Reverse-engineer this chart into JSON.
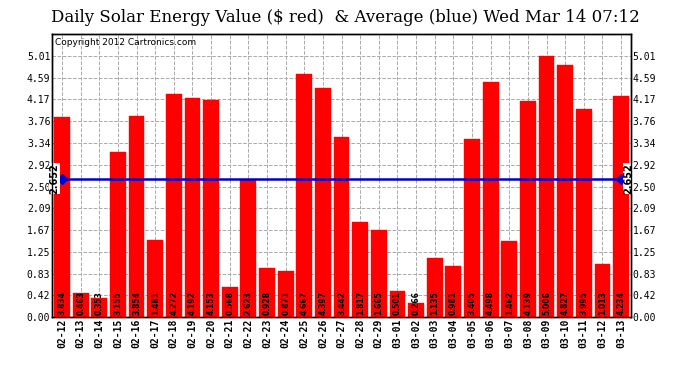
{
  "title": "Daily Solar Energy Value ($ red)  & Average (blue) Wed Mar 14 07:12",
  "copyright": "Copyright 2012 Cartronics.com",
  "categories": [
    "02-12",
    "02-13",
    "02-14",
    "02-15",
    "02-16",
    "02-17",
    "02-18",
    "02-19",
    "02-20",
    "02-21",
    "02-22",
    "02-23",
    "02-24",
    "02-25",
    "02-26",
    "02-27",
    "02-28",
    "02-29",
    "03-01",
    "03-02",
    "03-03",
    "03-04",
    "03-05",
    "03-06",
    "03-07",
    "03-08",
    "03-09",
    "03-10",
    "03-11",
    "03-12",
    "03-13"
  ],
  "values": [
    3.834,
    0.463,
    0.353,
    3.155,
    3.854,
    1.481,
    4.272,
    4.192,
    4.153,
    0.568,
    2.623,
    0.928,
    0.871,
    4.667,
    4.397,
    3.442,
    1.817,
    1.665,
    0.501,
    0.266,
    1.135,
    0.981,
    3.405,
    4.498,
    1.462,
    4.139,
    5.006,
    4.827,
    3.995,
    1.013,
    4.234
  ],
  "average": 2.652,
  "bar_color": "#ff0000",
  "avg_line_color": "#0000cc",
  "background_color": "#ffffff",
  "plot_bg_color": "#ffffff",
  "grid_color": "#aaaaaa",
  "ylim": [
    0,
    5.43
  ],
  "yticks": [
    0.0,
    0.42,
    0.83,
    1.25,
    1.67,
    2.09,
    2.5,
    2.92,
    3.34,
    3.76,
    4.17,
    4.59,
    5.01
  ],
  "title_fontsize": 12,
  "tick_fontsize": 7,
  "value_fontsize": 5.5,
  "copyright_fontsize": 6.5,
  "avg_label": "2.652",
  "border_color": "#000000"
}
